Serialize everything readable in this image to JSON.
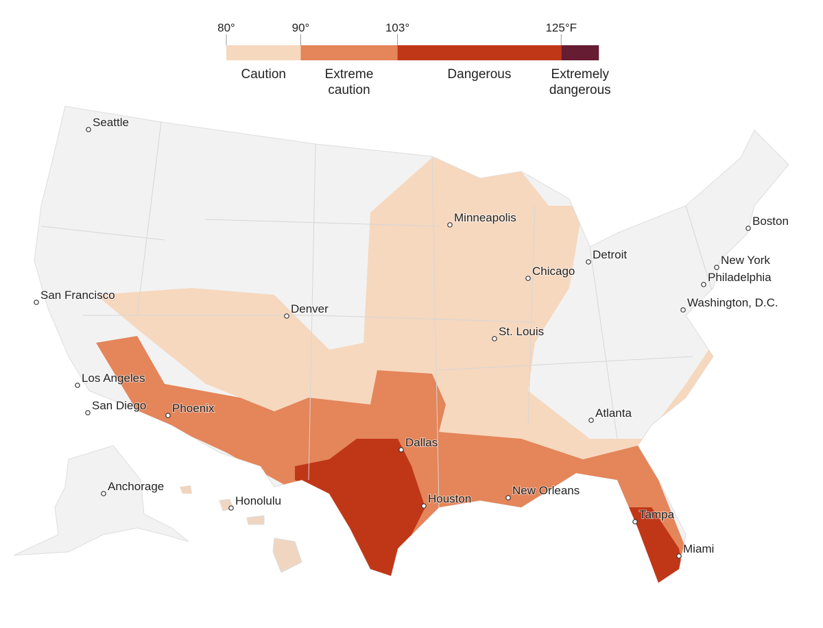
{
  "legend": {
    "ticks": [
      {
        "value": 80,
        "label": "80°"
      },
      {
        "value": 90,
        "label": "90°"
      },
      {
        "value": 103,
        "label": "103°"
      },
      {
        "value": 125,
        "label": "125°F"
      }
    ],
    "categories": [
      {
        "label": "Caution",
        "color": "#f6d8bf"
      },
      {
        "label": "Extreme caution",
        "color": "#e4855a"
      },
      {
        "label": "Dangerous",
        "color": "#c03718"
      },
      {
        "label": "Extremely dangerous",
        "color": "#661c33"
      }
    ]
  },
  "cities": [
    "Seattle",
    "San Francisco",
    "Los Angeles",
    "San Diego",
    "Phoenix",
    "Denver",
    "Minneapolis",
    "Chicago",
    "Detroit",
    "St. Louis",
    "Dallas",
    "Houston",
    "New Orleans",
    "Atlanta",
    "Boston",
    "New York",
    "Philadelphia",
    "Washington, D.C.",
    "Tampa",
    "Miami",
    "Anchorage",
    "Honolulu"
  ]
}
